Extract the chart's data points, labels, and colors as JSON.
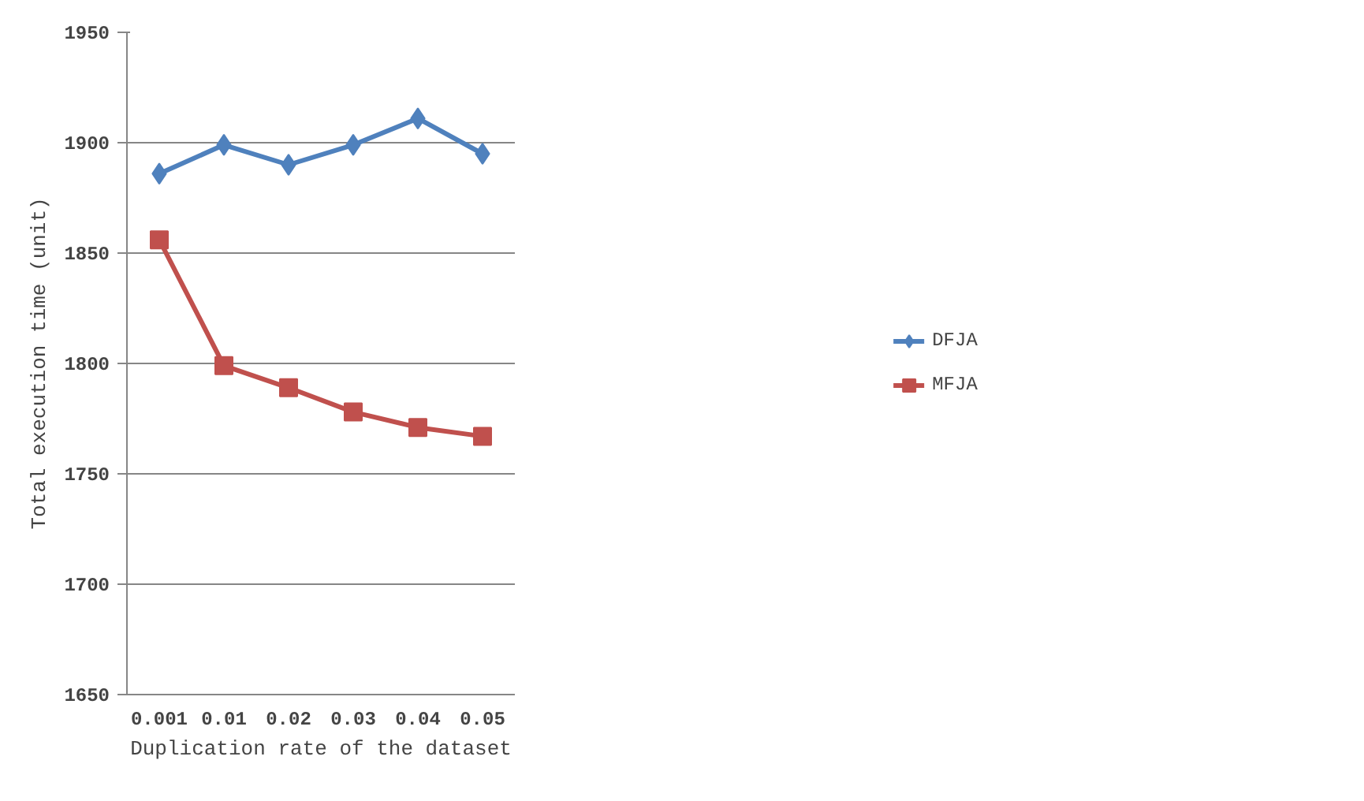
{
  "chart_data": {
    "type": "line",
    "xlabel": "Duplication rate of the dataset",
    "ylabel": "Total execution time (unit)",
    "categories": [
      "0.001",
      "0.01",
      "0.02",
      "0.03",
      "0.04",
      "0.05"
    ],
    "series": [
      {
        "name": "DFJA",
        "color": "#4f81bd",
        "marker": "diamond",
        "values": [
          1886,
          1899,
          1890,
          1899,
          1911,
          1895
        ]
      },
      {
        "name": "MFJA",
        "color": "#c0504d",
        "marker": "square",
        "values": [
          1856,
          1799,
          1789,
          1778,
          1771,
          1767
        ]
      }
    ],
    "ylim": [
      1650,
      1950
    ],
    "yticks": [
      1650,
      1700,
      1750,
      1800,
      1850,
      1900,
      1950
    ],
    "grid": "y",
    "legend": "right",
    "line_style": "solid"
  }
}
